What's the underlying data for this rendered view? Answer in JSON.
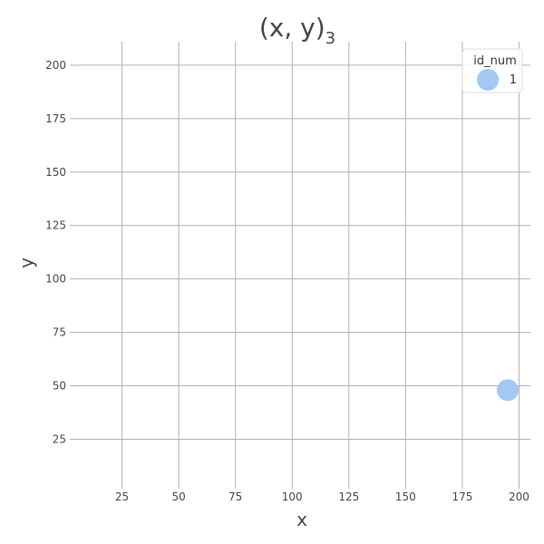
{
  "chart_data": {
    "type": "scatter",
    "title_main": "(x, y)",
    "title_sub": "3",
    "xlabel": "x",
    "ylabel": "y",
    "xlim": [
      4,
      205
    ],
    "ylim": [
      4,
      211
    ],
    "xticks": [
      25,
      50,
      75,
      100,
      125,
      150,
      175,
      200
    ],
    "yticks": [
      25,
      50,
      75,
      100,
      125,
      150,
      175,
      200
    ],
    "grid": true,
    "legend": {
      "title": "id_num",
      "placement": "top-right",
      "entries": [
        {
          "label": "1",
          "color": "#a1c9f4"
        }
      ]
    },
    "series": [
      {
        "name": "1",
        "color": "#a1c9f4",
        "points": [
          {
            "x": 195,
            "y": 48
          }
        ]
      }
    ]
  }
}
